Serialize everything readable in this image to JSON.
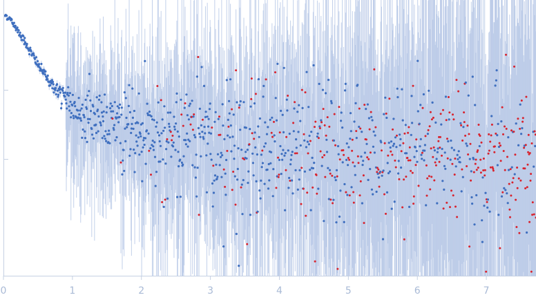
{
  "chart_data": {
    "type": "scatter",
    "title": "",
    "xlabel": "",
    "ylabel": "",
    "xlim": [
      0,
      7.72
    ],
    "log_y": true,
    "y_ticks_labeled": false,
    "x_ticks": [
      {
        "value": 0,
        "label": "0"
      },
      {
        "value": 1,
        "label": "1"
      },
      {
        "value": 2,
        "label": "2"
      },
      {
        "value": 3,
        "label": "3"
      },
      {
        "value": 4,
        "label": "4"
      },
      {
        "value": 5,
        "label": "5"
      },
      {
        "value": 6,
        "label": "6"
      },
      {
        "value": 7,
        "label": "7"
      }
    ],
    "colors": {
      "included": "#3f6fbf",
      "excluded": "#d8232e",
      "error_bars": "#b7c8e6",
      "axis": "#c5d0e3",
      "tick_labels": "#a9bad6"
    },
    "grid": false,
    "series": [
      {
        "points": [
          {
            "x": 0.03,
            "y": 1.0
          },
          {
            "x": 0.1,
            "y": 0.92
          },
          {
            "x": 0.2,
            "y": 0.76
          },
          {
            "x": 0.3,
            "y": 0.61
          },
          {
            "x": 0.4,
            "y": 0.48
          },
          {
            "x": 0.5,
            "y": 0.38
          },
          {
            "x": 0.6,
            "y": 0.31
          },
          {
            "x": 0.7,
            "y": 0.26
          },
          {
            "x": 0.8,
            "y": 0.22
          },
          {
            "x": 0.9,
            "y": 0.19
          },
          {
            "x": 1.0,
            "y": 0.165
          },
          {
            "x": 1.1,
            "y": 0.15
          },
          {
            "x": 1.2,
            "y": 0.138
          },
          {
            "x": 1.35,
            "y": 0.125
          },
          {
            "x": 1.5,
            "y": 0.115
          },
          {
            "x": 1.7,
            "y": 0.105
          },
          {
            "x": 1.9,
            "y": 0.097
          },
          {
            "x": 2.1,
            "y": 0.092
          },
          {
            "x": 2.4,
            "y": 0.086
          },
          {
            "x": 2.7,
            "y": 0.082
          },
          {
            "x": 3.0,
            "y": 0.079
          },
          {
            "x": 3.5,
            "y": 0.076
          },
          {
            "x": 4.0,
            "y": 0.073
          },
          {
            "x": 4.5,
            "y": 0.071
          },
          {
            "x": 5.0,
            "y": 0.069
          },
          {
            "x": 5.5,
            "y": 0.067
          },
          {
            "x": 6.0,
            "y": 0.066
          },
          {
            "x": 6.5,
            "y": 0.065
          },
          {
            "x": 7.0,
            "y": 0.064
          },
          {
            "x": 7.72,
            "y": 0.063
          }
        ]
      }
    ]
  }
}
